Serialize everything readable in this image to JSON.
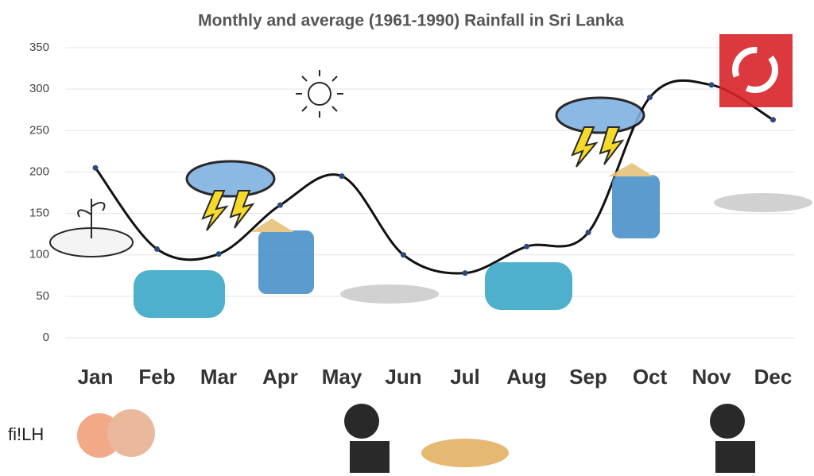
{
  "chart_data": {
    "type": "line",
    "title": "Monthly and average (1961-1990) Rainfall in Sri Lanka",
    "categories": [
      "Jan",
      "Feb",
      "Mar",
      "Apr",
      "May",
      "Jun",
      "Jul",
      "Aug",
      "Sep",
      "Oct",
      "Nov",
      "Dec"
    ],
    "values": [
      205,
      107,
      101,
      160,
      195,
      100,
      78,
      110,
      127,
      290,
      305,
      263
    ],
    "color": "#111111",
    "marker_color": "#2e4a7a",
    "ylim": [
      0,
      350
    ],
    "yticks": [
      0,
      50,
      100,
      150,
      200,
      250,
      300,
      350
    ],
    "grid": true,
    "annotations": [
      "fi!LH"
    ]
  }
}
